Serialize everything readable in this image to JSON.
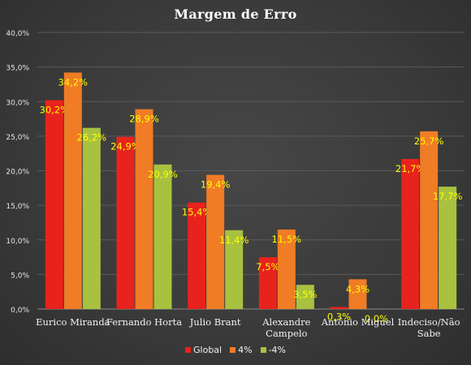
{
  "chart_data": {
    "type": "bar",
    "title": "Margem de Erro",
    "categories": [
      "Eurico Miranda",
      "Fernando Horta",
      "Julio Brant",
      "Alexandre Campelo",
      "Antônio Miguel",
      "Indeciso/Não Sabe"
    ],
    "category_lines": [
      [
        "Eurico Miranda"
      ],
      [
        "Fernando Horta"
      ],
      [
        "Julio Brant"
      ],
      [
        "Alexandre",
        "Campelo"
      ],
      [
        "Antônio Miguel"
      ],
      [
        "Indeciso/Não",
        "Sabe"
      ]
    ],
    "series": [
      {
        "name": "Global",
        "color": "#e8231d",
        "values": [
          30.2,
          24.9,
          15.4,
          7.5,
          0.3,
          21.7
        ],
        "labels": [
          "30,2%",
          "24,9%",
          "15,4%",
          "7,5%",
          "0,3%",
          "21,7%"
        ]
      },
      {
        "name": "4%",
        "color": "#f07c25",
        "values": [
          34.2,
          28.9,
          19.4,
          11.5,
          4.3,
          25.7
        ],
        "labels": [
          "34,2%",
          "28,9%",
          "19,4%",
          "11,5%",
          "4,3%",
          "25,7%"
        ]
      },
      {
        "name": "-4%",
        "color": "#a8c23f",
        "values": [
          26.2,
          20.9,
          11.4,
          3.5,
          0.0,
          17.7
        ],
        "labels": [
          "26,2%",
          "20,9%",
          "11,4%",
          "3,5%",
          "0,0%",
          "17,7%"
        ]
      }
    ],
    "y_ticks": [
      0,
      5,
      10,
      15,
      20,
      25,
      30,
      35,
      40
    ],
    "y_tick_labels": [
      "0,0%",
      "5,0%",
      "10,0%",
      "15,0%",
      "20,0%",
      "25,0%",
      "30,0%",
      "35,0%",
      "40,0%"
    ],
    "ylim": [
      0,
      40
    ],
    "grid": true,
    "legend_position": "bottom",
    "data_label_color": "#ffff00"
  }
}
